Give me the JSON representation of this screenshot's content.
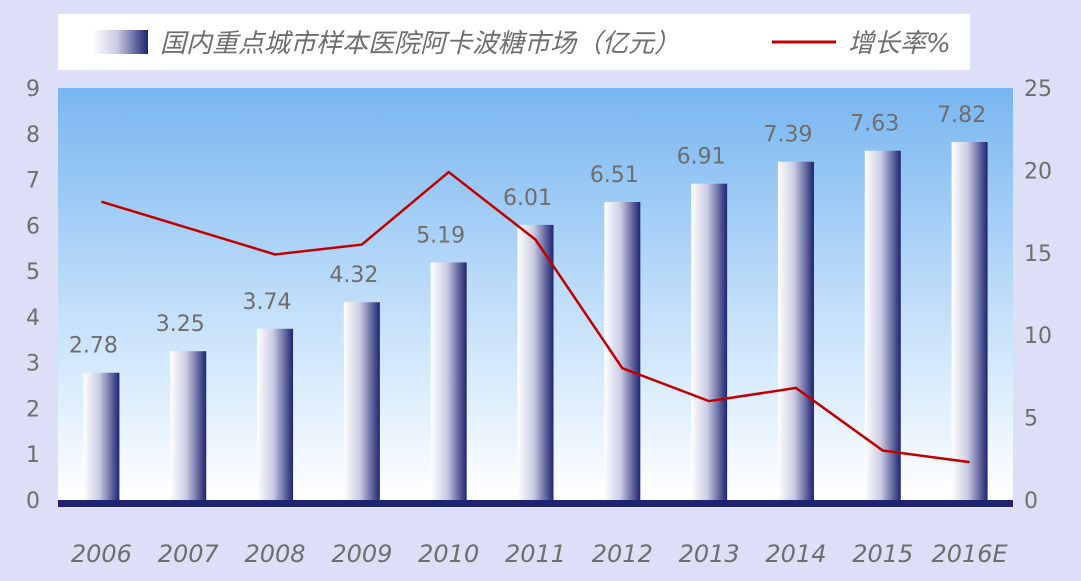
{
  "chart_data": {
    "type": "bar",
    "categories": [
      "2006",
      "2007",
      "2008",
      "2009",
      "2010",
      "2011",
      "2012",
      "2013",
      "2014",
      "2015",
      "2016E"
    ],
    "series": [
      {
        "name": "国内重点城市样本医院阿卡波糖市场（亿元）",
        "type": "bar",
        "axis": "left",
        "values": [
          2.78,
          3.25,
          3.74,
          4.32,
          5.19,
          6.01,
          6.51,
          6.91,
          7.39,
          7.63,
          7.82
        ],
        "data_labels": [
          "2.78",
          "3.25",
          "3.74",
          "4.32",
          "5.19",
          "6.01",
          "6.51",
          "6.91",
          "7.39",
          "7.63",
          "7.82"
        ]
      },
      {
        "name": "增长率%",
        "type": "line",
        "axis": "right",
        "values": [
          18.1,
          16.5,
          14.9,
          15.5,
          19.9,
          15.8,
          8.0,
          6.0,
          6.8,
          3.0,
          2.3
        ]
      }
    ],
    "y_left": {
      "min": 0,
      "max": 9,
      "ticks": [
        "0",
        "1",
        "2",
        "3",
        "4",
        "5",
        "6",
        "7",
        "8",
        "9"
      ]
    },
    "y_right": {
      "min": 0,
      "max": 25,
      "ticks": [
        "0",
        "5",
        "10",
        "15",
        "20",
        "25"
      ]
    },
    "colors": {
      "bar_dark": "#1f2470",
      "bar_light": "#ffffff",
      "line": "#c00000",
      "plot_top": "#7ab8f0",
      "plot_bottom": "#ffffff"
    },
    "legend_position": "top",
    "grid": false
  }
}
